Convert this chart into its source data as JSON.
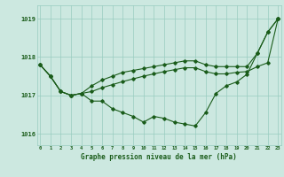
{
  "x": [
    0,
    1,
    2,
    3,
    4,
    5,
    6,
    7,
    8,
    9,
    10,
    11,
    12,
    13,
    14,
    15,
    16,
    17,
    18,
    19,
    20,
    21,
    22,
    23
  ],
  "line_main": [
    1017.8,
    1017.5,
    1017.1,
    1017.0,
    1017.05,
    1016.85,
    1016.85,
    1016.65,
    1016.55,
    1016.45,
    1016.3,
    1016.45,
    1016.4,
    1016.3,
    1016.25,
    1016.2,
    1016.55,
    1017.05,
    1017.25,
    1017.35,
    1017.55,
    1018.1,
    1018.65,
    1019.0
  ],
  "line_upper": [
    1017.8,
    1017.5,
    1017.1,
    1017.0,
    1017.05,
    1017.25,
    1017.4,
    1017.5,
    1017.6,
    1017.65,
    1017.7,
    1017.75,
    1017.8,
    1017.85,
    1017.9,
    1017.9,
    1017.8,
    1017.75,
    1017.75,
    1017.75,
    1017.75,
    1018.1,
    1018.65,
    1019.0
  ],
  "line_avg": [
    1017.8,
    1017.5,
    1017.1,
    1017.0,
    1017.05,
    1017.1,
    1017.2,
    1017.28,
    1017.36,
    1017.43,
    1017.5,
    1017.56,
    1017.62,
    1017.67,
    1017.72,
    1017.72,
    1017.62,
    1017.56,
    1017.56,
    1017.6,
    1017.62,
    1017.75,
    1017.85,
    1019.0
  ],
  "background_color": "#cce8e0",
  "grid_color": "#99ccc0",
  "line_color": "#1a5c1a",
  "ylabel_values": [
    1016,
    1017,
    1018,
    1019
  ],
  "xlabel_label": "Graphe pression niveau de la mer (hPa)",
  "ylim": [
    1015.7,
    1019.35
  ],
  "xlim": [
    -0.3,
    23.3
  ],
  "title": ""
}
